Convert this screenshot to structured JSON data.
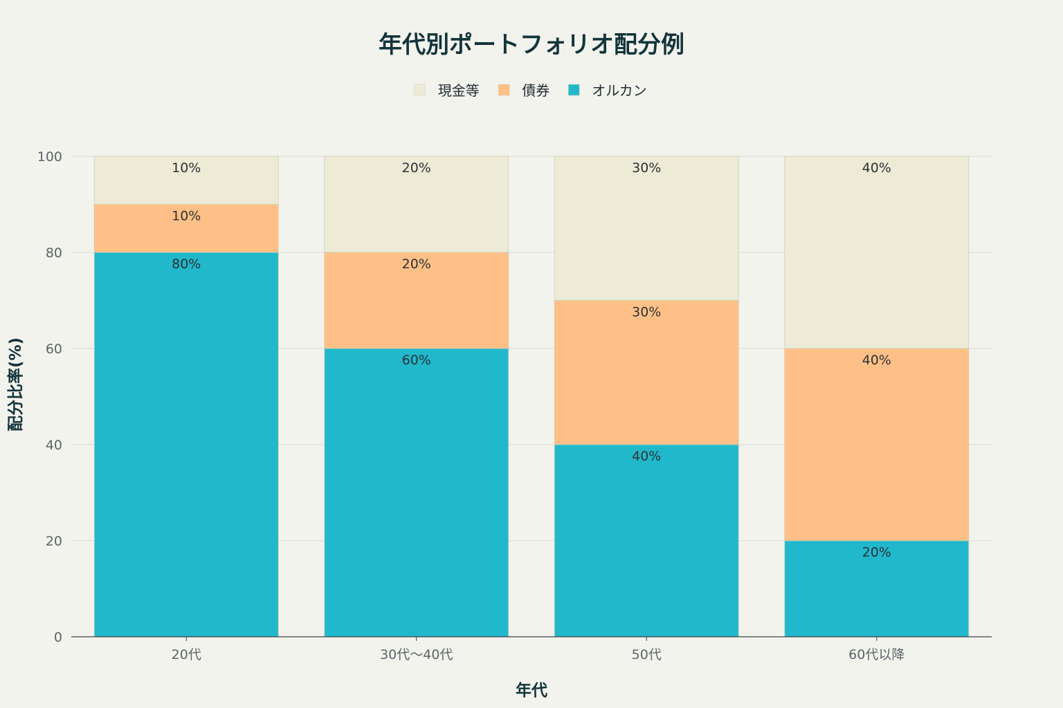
{
  "chart_data": {
    "type": "bar",
    "stacked": true,
    "title": "年代別ポートフォリオ配分例",
    "xlabel": "年代",
    "ylabel": "配分比率(%)",
    "categories": [
      "20代",
      "30代〜40代",
      "50代",
      "60代以降"
    ],
    "ylim": [
      0,
      100
    ],
    "yticks": [
      0,
      20,
      40,
      60,
      80,
      100
    ],
    "grid": true,
    "legend_position": "top-center",
    "series": [
      {
        "name": "オルカン",
        "values": [
          80,
          60,
          40,
          20
        ],
        "labels": [
          "80%",
          "60%",
          "40%",
          "20%"
        ],
        "color": "#21b8cc"
      },
      {
        "name": "債券",
        "values": [
          10,
          20,
          30,
          40
        ],
        "labels": [
          "10%",
          "20%",
          "30%",
          "40%"
        ],
        "color": "#ffc087"
      },
      {
        "name": "現金等",
        "values": [
          10,
          20,
          30,
          40
        ],
        "labels": [
          "10%",
          "20%",
          "30%",
          "40%"
        ],
        "color": "#edebd6"
      }
    ],
    "legend_order": [
      "現金等",
      "債券",
      "オルカン"
    ]
  }
}
